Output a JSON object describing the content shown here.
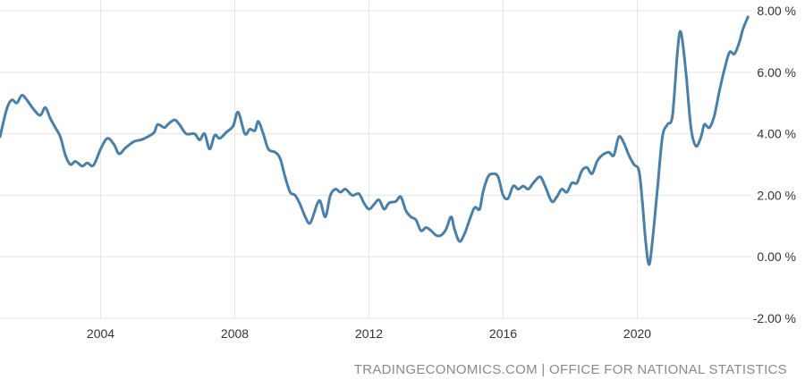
{
  "attribution": "TRADINGECONOMICS.COM | OFFICE FOR NATIONAL STATISTICS",
  "chart_data": {
    "type": "line",
    "title": "",
    "xlabel": "",
    "ylabel": "",
    "xlim": [
      2001.0,
      2023.4
    ],
    "ylim": [
      -2,
      8
    ],
    "x_ticks": [
      {
        "value": 2004,
        "label": "2004"
      },
      {
        "value": 2008,
        "label": "2008"
      },
      {
        "value": 2012,
        "label": "2012"
      },
      {
        "value": 2016,
        "label": "2016"
      },
      {
        "value": 2020,
        "label": "2020"
      }
    ],
    "y_ticks": [
      {
        "value": 8,
        "label": "8.00 %"
      },
      {
        "value": 6,
        "label": "6.00 %"
      },
      {
        "value": 4,
        "label": "4.00 %"
      },
      {
        "value": 2,
        "label": "2.00 %"
      },
      {
        "value": 0,
        "label": "0.00 %"
      },
      {
        "value": -2,
        "label": "-2.00 %"
      }
    ],
    "grid": true,
    "legend": "none",
    "series": [
      {
        "color": "#4a7fa7",
        "points": [
          [
            2001.0,
            3.9
          ],
          [
            2001.2,
            4.8
          ],
          [
            2001.35,
            5.1
          ],
          [
            2001.5,
            5.0
          ],
          [
            2001.65,
            5.25
          ],
          [
            2001.8,
            5.1
          ],
          [
            2002.0,
            4.8
          ],
          [
            2002.2,
            4.6
          ],
          [
            2002.35,
            4.85
          ],
          [
            2002.5,
            4.5
          ],
          [
            2002.65,
            4.2
          ],
          [
            2002.8,
            3.9
          ],
          [
            2002.95,
            3.3
          ],
          [
            2003.1,
            3.0
          ],
          [
            2003.25,
            3.1
          ],
          [
            2003.45,
            2.95
          ],
          [
            2003.6,
            3.05
          ],
          [
            2003.75,
            2.95
          ],
          [
            2003.85,
            3.1
          ],
          [
            2004.0,
            3.5
          ],
          [
            2004.2,
            3.85
          ],
          [
            2004.4,
            3.65
          ],
          [
            2004.55,
            3.35
          ],
          [
            2004.75,
            3.55
          ],
          [
            2005.0,
            3.75
          ],
          [
            2005.2,
            3.8
          ],
          [
            2005.4,
            3.9
          ],
          [
            2005.6,
            4.05
          ],
          [
            2005.7,
            4.3
          ],
          [
            2005.9,
            4.2
          ],
          [
            2006.0,
            4.3
          ],
          [
            2006.2,
            4.45
          ],
          [
            2006.35,
            4.3
          ],
          [
            2006.55,
            4.0
          ],
          [
            2006.8,
            4.0
          ],
          [
            2006.95,
            3.8
          ],
          [
            2007.1,
            4.0
          ],
          [
            2007.25,
            3.5
          ],
          [
            2007.4,
            3.95
          ],
          [
            2007.55,
            3.85
          ],
          [
            2007.75,
            4.05
          ],
          [
            2007.95,
            4.25
          ],
          [
            2008.1,
            4.7
          ],
          [
            2008.3,
            4.0
          ],
          [
            2008.45,
            4.15
          ],
          [
            2008.6,
            4.1
          ],
          [
            2008.7,
            4.4
          ],
          [
            2008.85,
            4.0
          ],
          [
            2009.0,
            3.5
          ],
          [
            2009.2,
            3.4
          ],
          [
            2009.35,
            3.2
          ],
          [
            2009.5,
            2.6
          ],
          [
            2009.65,
            2.1
          ],
          [
            2009.8,
            2.0
          ],
          [
            2009.95,
            1.7
          ],
          [
            2010.1,
            1.3
          ],
          [
            2010.25,
            1.1
          ],
          [
            2010.45,
            1.7
          ],
          [
            2010.55,
            1.8
          ],
          [
            2010.7,
            1.3
          ],
          [
            2010.85,
            2.0
          ],
          [
            2011.0,
            2.2
          ],
          [
            2011.15,
            2.1
          ],
          [
            2011.3,
            2.2
          ],
          [
            2011.5,
            2.0
          ],
          [
            2011.7,
            2.05
          ],
          [
            2011.85,
            1.75
          ],
          [
            2012.0,
            1.55
          ],
          [
            2012.15,
            1.7
          ],
          [
            2012.3,
            1.85
          ],
          [
            2012.45,
            1.55
          ],
          [
            2012.6,
            1.75
          ],
          [
            2012.8,
            1.8
          ],
          [
            2012.95,
            1.95
          ],
          [
            2013.1,
            1.5
          ],
          [
            2013.25,
            1.3
          ],
          [
            2013.4,
            1.2
          ],
          [
            2013.55,
            0.85
          ],
          [
            2013.7,
            0.95
          ],
          [
            2013.85,
            0.85
          ],
          [
            2014.0,
            0.7
          ],
          [
            2014.15,
            0.7
          ],
          [
            2014.3,
            0.9
          ],
          [
            2014.45,
            1.3
          ],
          [
            2014.55,
            0.9
          ],
          [
            2014.7,
            0.5
          ],
          [
            2014.85,
            0.75
          ],
          [
            2015.0,
            1.2
          ],
          [
            2015.15,
            1.6
          ],
          [
            2015.3,
            1.55
          ],
          [
            2015.4,
            2.1
          ],
          [
            2015.55,
            2.6
          ],
          [
            2015.7,
            2.7
          ],
          [
            2015.85,
            2.6
          ],
          [
            2016.0,
            2.0
          ],
          [
            2016.15,
            1.9
          ],
          [
            2016.3,
            2.3
          ],
          [
            2016.45,
            2.2
          ],
          [
            2016.6,
            2.3
          ],
          [
            2016.75,
            2.2
          ],
          [
            2016.9,
            2.4
          ],
          [
            2017.1,
            2.6
          ],
          [
            2017.25,
            2.3
          ],
          [
            2017.45,
            1.8
          ],
          [
            2017.6,
            1.95
          ],
          [
            2017.75,
            2.2
          ],
          [
            2017.9,
            2.1
          ],
          [
            2018.05,
            2.4
          ],
          [
            2018.2,
            2.4
          ],
          [
            2018.35,
            2.8
          ],
          [
            2018.5,
            2.9
          ],
          [
            2018.65,
            2.7
          ],
          [
            2018.8,
            3.1
          ],
          [
            2018.95,
            3.3
          ],
          [
            2019.15,
            3.4
          ],
          [
            2019.3,
            3.3
          ],
          [
            2019.45,
            3.9
          ],
          [
            2019.6,
            3.7
          ],
          [
            2019.75,
            3.3
          ],
          [
            2019.9,
            3.0
          ],
          [
            2020.05,
            2.8
          ],
          [
            2020.15,
            1.8
          ],
          [
            2020.25,
            0.5
          ],
          [
            2020.35,
            -0.25
          ],
          [
            2020.45,
            0.5
          ],
          [
            2020.6,
            2.2
          ],
          [
            2020.75,
            3.9
          ],
          [
            2020.9,
            4.3
          ],
          [
            2021.05,
            4.6
          ],
          [
            2021.2,
            6.7
          ],
          [
            2021.3,
            7.3
          ],
          [
            2021.45,
            6.0
          ],
          [
            2021.6,
            4.2
          ],
          [
            2021.75,
            3.6
          ],
          [
            2021.9,
            3.9
          ],
          [
            2022.0,
            4.3
          ],
          [
            2022.15,
            4.2
          ],
          [
            2022.3,
            4.6
          ],
          [
            2022.45,
            5.4
          ],
          [
            2022.6,
            6.1
          ],
          [
            2022.75,
            6.65
          ],
          [
            2022.9,
            6.6
          ],
          [
            2023.05,
            7.0
          ],
          [
            2023.15,
            7.4
          ],
          [
            2023.3,
            7.8
          ]
        ]
      }
    ]
  }
}
